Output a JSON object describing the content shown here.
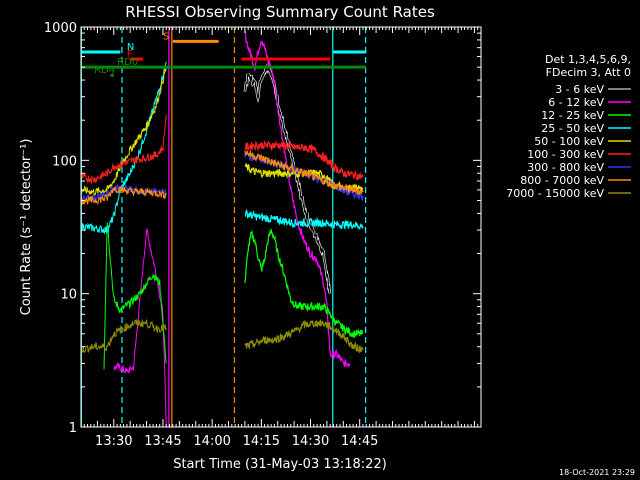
{
  "chart_data": {
    "type": "line",
    "title": "RHESSI Observing Summary Count Rates",
    "xlabel": "Start Time (31-May-03 13:18:22)",
    "ylabel": "Count Rate (s⁻¹ detector⁻¹)",
    "yscale": "log",
    "ylim": [
      1,
      1000
    ],
    "xlim_min": [
      20,
      142
    ],
    "y_ticks": [
      {
        "value": 1,
        "label": "1"
      },
      {
        "value": 10,
        "label": "10"
      },
      {
        "value": 100,
        "label": "100"
      },
      {
        "value": 1000,
        "label": "1000"
      }
    ],
    "x_ticks": [
      {
        "value": 30,
        "label": "13:30"
      },
      {
        "value": 45,
        "label": "13:45"
      },
      {
        "value": 60,
        "label": "14:00"
      },
      {
        "value": 75,
        "label": "14:15"
      },
      {
        "value": 90,
        "label": "14:30"
      },
      {
        "value": 105,
        "label": "14:45"
      }
    ],
    "legend_header": [
      "Det 1,3,4,5,6,9,",
      "FDecim 3, Att 0"
    ],
    "series": [
      {
        "name": "3 - 6 keV",
        "color": "#000000",
        "outline": "#ffffff",
        "x": [
          31,
          35,
          40,
          44,
          46,
          70,
          71,
          73,
          74,
          75,
          76,
          77,
          78,
          79,
          80,
          82,
          84,
          86,
          88,
          90,
          92,
          94,
          96
        ],
        "y": [
          62,
          60,
          37,
          28,
          18,
          350,
          430,
          380,
          310,
          420,
          470,
          520,
          450,
          360,
          280,
          170,
          110,
          70,
          45,
          32,
          26,
          20,
          10
        ]
      },
      {
        "name": "6 - 12 keV",
        "color": "#ff00ff",
        "x": [
          30,
          32,
          34,
          36,
          40,
          43,
          45,
          46,
          70,
          71,
          72,
          73,
          74,
          75,
          76,
          77,
          78,
          79,
          80,
          82,
          84,
          86,
          88,
          90,
          92,
          94,
          95,
          96,
          98,
          100,
          102
        ],
        "y": [
          2.8,
          2.8,
          2.6,
          2.8,
          30,
          14,
          7,
          1.0,
          900,
          700,
          600,
          500,
          650,
          820,
          700,
          560,
          500,
          380,
          250,
          120,
          60,
          35,
          25,
          20,
          18,
          12,
          8,
          3.5,
          3.5,
          3,
          3
        ]
      },
      {
        "name": "12 - 25 keV",
        "color": "#00ff00",
        "x": [
          27,
          28,
          30,
          32,
          35,
          38,
          40,
          42,
          44,
          46,
          70,
          71,
          72,
          73,
          74,
          75,
          76,
          77,
          78,
          79,
          80,
          82,
          84,
          86,
          88,
          90,
          92,
          94,
          96,
          98,
          100,
          103,
          106
        ],
        "y": [
          2.8,
          35,
          9,
          7.5,
          8.5,
          10,
          12,
          14,
          12,
          3,
          12,
          22,
          28,
          25,
          19,
          15,
          18,
          25,
          30,
          26,
          20,
          14,
          9,
          8,
          8,
          8,
          8,
          8,
          7,
          6,
          5.5,
          5,
          5
        ]
      },
      {
        "name": "25 - 50 keV",
        "color": "#00ffff",
        "x": [
          20,
          24,
          28,
          30,
          32,
          35,
          38,
          41,
          44,
          46,
          70,
          73,
          76,
          79,
          82,
          85,
          88,
          91,
          94,
          97,
          100,
          103,
          106
        ],
        "y": [
          32,
          31,
          30,
          38,
          60,
          80,
          120,
          200,
          350,
          550,
          40,
          38,
          37,
          36,
          35,
          34,
          34,
          34,
          34,
          33,
          33,
          33,
          32
        ]
      },
      {
        "name": "50 - 100 keV",
        "color": "#e0e000",
        "x": [
          20,
          24,
          28,
          30,
          33,
          36,
          40,
          43,
          46,
          70,
          73,
          76,
          79,
          82,
          85,
          88,
          91,
          94,
          97,
          100,
          103,
          106
        ],
        "y": [
          60,
          58,
          60,
          70,
          100,
          130,
          180,
          260,
          500,
          90,
          82,
          80,
          80,
          80,
          80,
          80,
          80,
          78,
          65,
          62,
          62,
          62
        ]
      },
      {
        "name": "100 - 300 keV",
        "color": "#ff2020",
        "x": [
          20,
          24,
          28,
          30,
          33,
          36,
          40,
          43,
          45,
          46,
          70,
          73,
          76,
          79,
          82,
          85,
          88,
          91,
          94,
          97,
          100,
          103,
          106
        ],
        "y": [
          75,
          72,
          80,
          90,
          95,
          100,
          105,
          110,
          125,
          220,
          125,
          130,
          130,
          130,
          130,
          125,
          125,
          120,
          105,
          90,
          80,
          78,
          75
        ]
      },
      {
        "name": "300 - 800 keV",
        "color": "#3030ff",
        "x": [
          20,
          24,
          28,
          30,
          33,
          36,
          40,
          43,
          46,
          70,
          73,
          76,
          79,
          82,
          85,
          88,
          91,
          94,
          97,
          100,
          103,
          106
        ],
        "y": [
          52,
          52,
          55,
          62,
          62,
          60,
          58,
          58,
          57,
          110,
          105,
          100,
          95,
          90,
          85,
          80,
          75,
          70,
          65,
          60,
          56,
          54
        ]
      },
      {
        "name": "800 - 7000 keV",
        "color": "#ff8c00",
        "x": [
          20,
          24,
          28,
          30,
          33,
          36,
          40,
          43,
          46,
          70,
          73,
          76,
          79,
          82,
          85,
          88,
          91,
          94,
          97,
          100,
          103,
          106
        ],
        "y": [
          50,
          50,
          52,
          62,
          60,
          58,
          58,
          57,
          55,
          115,
          108,
          102,
          95,
          90,
          85,
          80,
          75,
          70,
          65,
          62,
          60,
          58
        ]
      },
      {
        "name": "7000 - 15000 keV",
        "color": "#8c8c00",
        "x": [
          20,
          24,
          28,
          30,
          33,
          36,
          40,
          43,
          46,
          70,
          73,
          76,
          79,
          82,
          85,
          88,
          91,
          94,
          97,
          100,
          103,
          106
        ],
        "y": [
          3.8,
          4,
          4,
          5,
          5.5,
          6,
          6,
          5.5,
          5.5,
          4,
          4.2,
          4.5,
          4.5,
          4.8,
          5.2,
          5.8,
          6,
          6,
          5.5,
          4.8,
          4,
          3.8
        ]
      }
    ],
    "state_bars": [
      {
        "label": "N",
        "color": "#00ffff",
        "y": 650,
        "segments": [
          [
            20,
            32
          ],
          [
            97,
            107
          ]
        ],
        "label_x": 34
      },
      {
        "label": "S",
        "color": "#ff8c00",
        "y": 780,
        "segments": [
          [
            48,
            62
          ]
        ],
        "label_x": 45
      },
      {
        "label": "F",
        "color": "#ff0000",
        "y": 575,
        "segments": [
          [
            35,
            39
          ],
          [
            69,
            96
          ]
        ],
        "label_x": 34
      },
      {
        "label": "RD0",
        "color": "#008c00",
        "y": 500,
        "segments": [
          [
            20,
            107
          ]
        ],
        "label_x": 31
      },
      {
        "label": "RD4",
        "color": "#008c00",
        "y": 435,
        "segments": [
          [
            29,
            30
          ]
        ],
        "label_x": 24
      }
    ],
    "vertical_lines": [
      {
        "x": 20.1,
        "color": "#00ffff",
        "style": "solid"
      },
      {
        "x": 32.5,
        "color": "#00ffff",
        "style": "dashed"
      },
      {
        "x": 46.8,
        "color": "#ff00ff",
        "style": "solid"
      },
      {
        "x": 47.7,
        "color": "#ff8c00",
        "style": "solid"
      },
      {
        "x": 66.8,
        "color": "#ff8c00",
        "style": "dashed"
      },
      {
        "x": 96.8,
        "color": "#00ffff",
        "style": "solid"
      },
      {
        "x": 106.8,
        "color": "#00ffff",
        "style": "dashed"
      }
    ],
    "footer_date": "18-Oct-2021 23:29"
  }
}
